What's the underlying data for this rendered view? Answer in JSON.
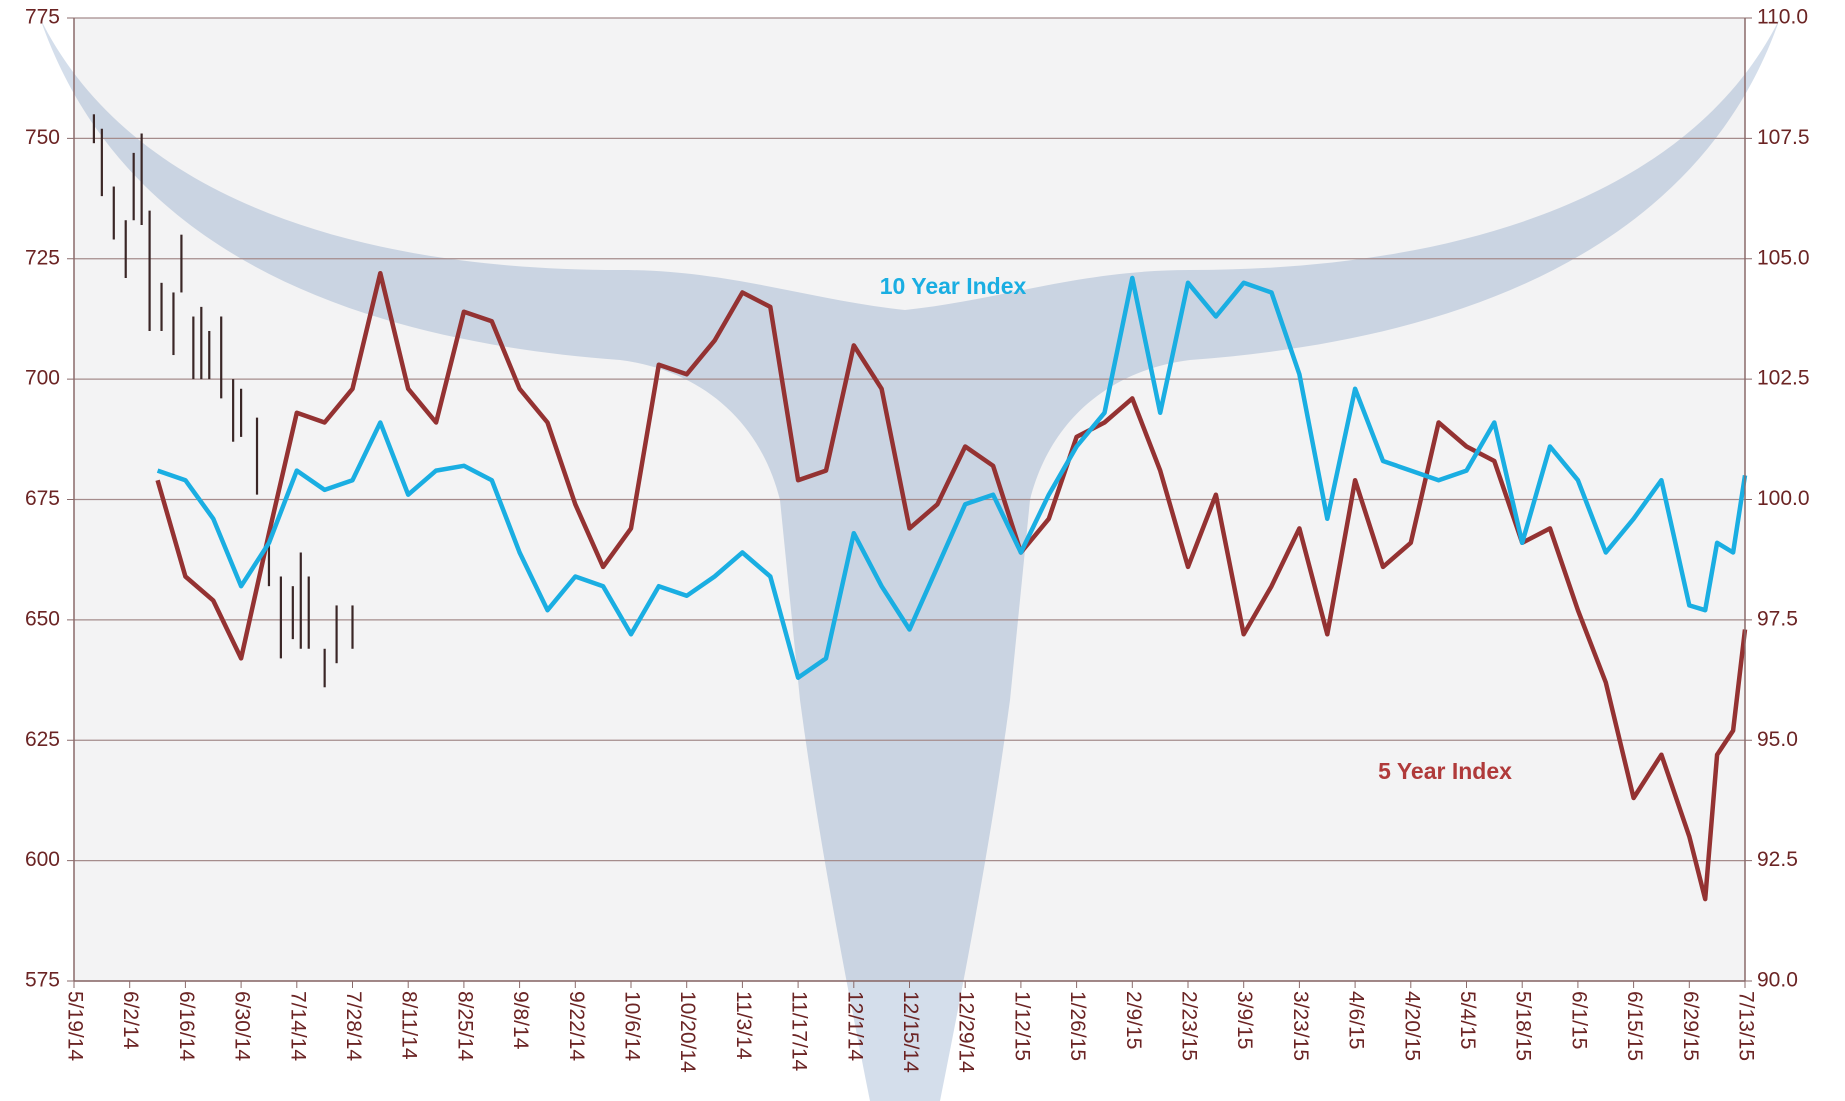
{
  "chart_data": {
    "type": "line",
    "xlim": [
      "5/19/14",
      "7/13/15"
    ],
    "xticks": [
      "5/19/14",
      "6/2/14",
      "6/16/14",
      "6/30/14",
      "7/14/14",
      "7/28/14",
      "8/11/14",
      "8/25/14",
      "9/8/14",
      "9/22/14",
      "10/6/14",
      "10/20/14",
      "11/3/14",
      "11/17/14",
      "12/1/14",
      "12/15/14",
      "12/29/14",
      "1/12/15",
      "1/26/15",
      "2/9/15",
      "2/23/15",
      "3/9/15",
      "3/23/15",
      "4/6/15",
      "4/20/15",
      "5/4/15",
      "5/18/15",
      "6/1/15",
      "6/15/15",
      "6/29/15",
      "7/13/15"
    ],
    "ylim": [
      575,
      775
    ],
    "yticks": [
      575,
      600,
      625,
      650,
      675,
      700,
      725,
      750,
      775
    ],
    "y2lim": [
      90,
      110
    ],
    "y2ticks": [
      {
        "value": 90,
        "label": "90.0"
      },
      92.5,
      {
        "value": 95,
        "label": "95.0"
      },
      97.5,
      {
        "value": 100,
        "label": "100.0"
      },
      102.5,
      {
        "value": 105,
        "label": "105.0"
      },
      107.5,
      {
        "value": 110,
        "label": "110.0"
      }
    ],
    "grid": true,
    "annotations": [
      "10 Year Index",
      "5 Year Index"
    ],
    "x": [
      "6/9/14",
      "6/16/14",
      "6/23/14",
      "6/30/14",
      "7/7/14",
      "7/14/14",
      "7/21/14",
      "7/28/14",
      "8/4/14",
      "8/11/14",
      "8/18/14",
      "8/25/14",
      "9/1/14",
      "9/8/14",
      "9/15/14",
      "9/22/14",
      "9/29/14",
      "10/6/14",
      "10/13/14",
      "10/20/14",
      "10/27/14",
      "11/3/14",
      "11/10/14",
      "11/17/14",
      "11/24/14",
      "12/1/14",
      "12/8/14",
      "12/15/14",
      "12/22/14",
      "12/29/14",
      "1/5/15",
      "1/12/15",
      "1/19/15",
      "1/26/15",
      "2/2/15",
      "2/9/15",
      "2/16/15",
      "2/23/15",
      "3/2/15",
      "3/9/15",
      "3/16/15",
      "3/23/15",
      "3/30/15",
      "4/6/15",
      "4/13/15",
      "4/20/15",
      "4/27/15",
      "5/4/15",
      "5/11/15",
      "5/18/15",
      "5/25/15",
      "6/1/15",
      "6/8/15",
      "6/15/15",
      "6/22/15",
      "6/29/15",
      "7/3/15",
      "7/6/15",
      "7/10/15",
      "7/13/15"
    ],
    "series": [
      {
        "name": "5 Year Index",
        "color": "#943232",
        "axis": "y2",
        "values": [
          100.4,
          98.4,
          97.9,
          96.7,
          99.3,
          101.8,
          101.6,
          102.3,
          104.7,
          102.3,
          101.6,
          103.9,
          103.7,
          102.3,
          101.6,
          99.9,
          98.6,
          99.4,
          102.8,
          102.6,
          103.3,
          104.3,
          104.0,
          100.4,
          100.6,
          103.2,
          102.3,
          99.4,
          99.9,
          101.1,
          100.7,
          98.9,
          99.6,
          101.3,
          101.6,
          102.1,
          100.6,
          98.6,
          100.1,
          97.2,
          98.2,
          99.4,
          97.2,
          100.4,
          98.6,
          99.1,
          101.6,
          101.1,
          100.8,
          99.1,
          99.4,
          97.7,
          96.2,
          93.8,
          94.7,
          93.0,
          91.7,
          94.7,
          95.2,
          97.3
        ]
      },
      {
        "name": "10 Year Index",
        "color": "#1aaee2",
        "axis": "y2",
        "values": [
          100.6,
          100.4,
          99.6,
          98.2,
          99.1,
          100.6,
          100.2,
          100.4,
          101.6,
          100.1,
          100.6,
          100.7,
          100.4,
          98.9,
          97.7,
          98.4,
          98.2,
          97.2,
          98.2,
          98.0,
          98.4,
          98.9,
          98.4,
          96.3,
          96.7,
          99.3,
          98.2,
          97.3,
          98.6,
          99.9,
          100.1,
          98.9,
          100.1,
          101.1,
          101.8,
          104.6,
          101.8,
          104.5,
          103.8,
          104.5,
          104.3,
          102.6,
          99.6,
          102.3,
          100.8,
          100.6,
          100.4,
          100.6,
          101.6,
          99.1,
          101.1,
          100.4,
          98.9,
          99.6,
          100.4,
          97.8,
          97.7,
          99.1,
          98.9,
          100.5
        ]
      }
    ],
    "bars": {
      "color": "#3a2626",
      "x": [
        "5/24/14",
        "5/26/14",
        "5/29/14",
        "6/1/14",
        "6/3/14",
        "6/5/14",
        "6/7/14",
        "6/10/14",
        "6/13/14",
        "6/15/14",
        "6/18/14",
        "6/20/14",
        "6/22/14",
        "6/25/14",
        "6/28/14",
        "6/30/14",
        "7/4/14",
        "7/7/14",
        "7/10/14",
        "7/13/14",
        "7/15/14",
        "7/17/14",
        "7/21/14",
        "7/24/14",
        "7/28/14"
      ],
      "high": [
        755,
        752,
        740,
        733,
        747,
        751,
        735,
        720,
        718,
        730,
        713,
        715,
        710,
        713,
        700,
        698,
        692,
        666,
        659,
        657,
        664,
        659,
        644,
        653,
        653
      ],
      "low": [
        749,
        738,
        729,
        721,
        733,
        732,
        710,
        710,
        705,
        718,
        700,
        700,
        700,
        696,
        687,
        688,
        676,
        657,
        642,
        646,
        644,
        644,
        636,
        641,
        644
      ]
    }
  }
}
